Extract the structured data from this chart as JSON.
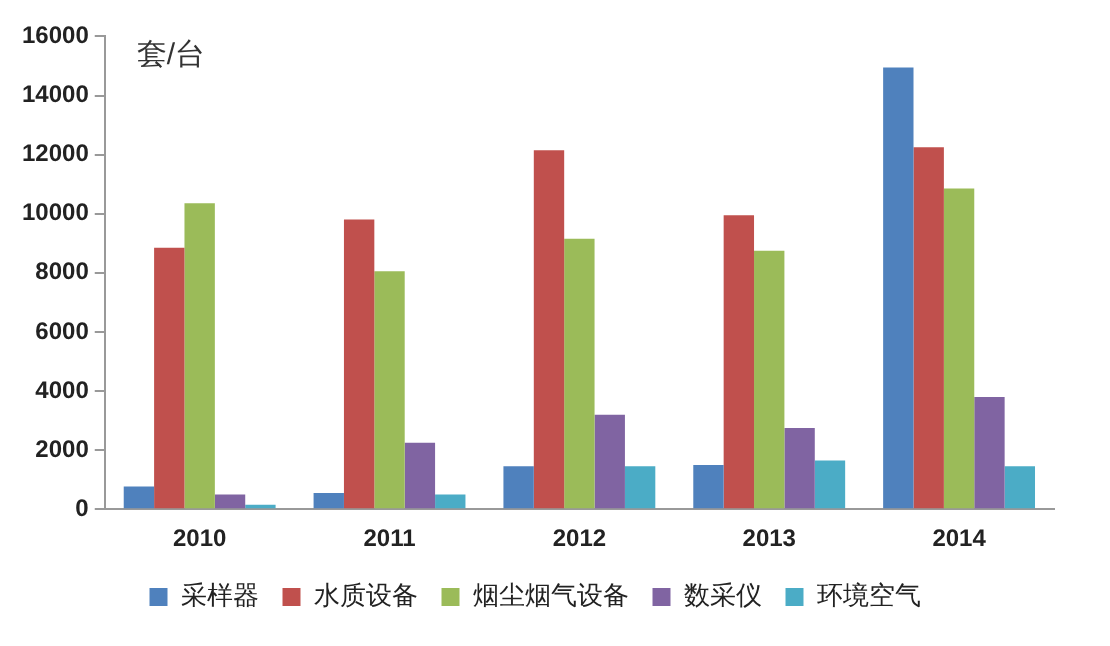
{
  "chart_data": {
    "type": "bar",
    "ylabel": "套/台",
    "categories": [
      "2010",
      "2011",
      "2012",
      "2013",
      "2014"
    ],
    "series": [
      {
        "name": "采样器",
        "color": "#4f81bd",
        "values": [
          770,
          550,
          1450,
          1500,
          14950
        ]
      },
      {
        "name": "水质设备",
        "color": "#c0504d",
        "values": [
          8850,
          9800,
          12150,
          9950,
          12250
        ]
      },
      {
        "name": "烟尘烟气设备",
        "color": "#9bbb59",
        "values": [
          10350,
          8050,
          9150,
          8750,
          10850
        ]
      },
      {
        "name": "数采仪",
        "color": "#8064a2",
        "values": [
          500,
          2250,
          3200,
          2750,
          3800
        ]
      },
      {
        "name": "环境空气",
        "color": "#4bacc6",
        "values": [
          150,
          500,
          1450,
          1650,
          1450
        ]
      }
    ],
    "ylim": [
      0,
      16000
    ],
    "yticks": [
      0,
      2000,
      4000,
      6000,
      8000,
      10000,
      12000,
      14000,
      16000
    ],
    "grid": false,
    "legend": "bottom"
  }
}
